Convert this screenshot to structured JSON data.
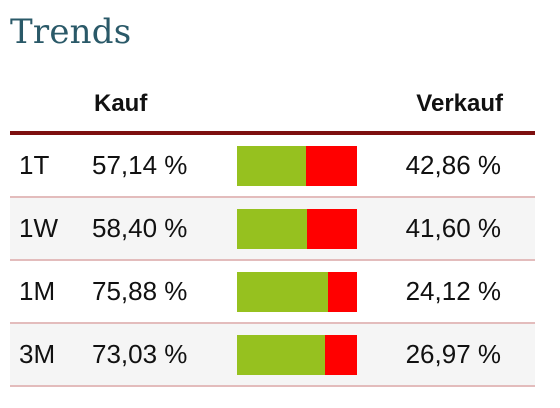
{
  "title": "Trends",
  "columns": {
    "buy": "Kauf",
    "sell": "Verkauf"
  },
  "colors": {
    "title": "#2a5968",
    "buy_bar": "#96c11f",
    "sell_bar": "#ff0000",
    "header_rule": "#7d0f0f",
    "row_divider": "#e3bcbc"
  },
  "rows": [
    {
      "period": "1T",
      "buy": "57,14 %",
      "sell": "42,86 %",
      "buy_fraction": 0.5714
    },
    {
      "period": "1W",
      "buy": "58,40 %",
      "sell": "41,60 %",
      "buy_fraction": 0.584
    },
    {
      "period": "1M",
      "buy": "75,88 %",
      "sell": "24,12 %",
      "buy_fraction": 0.7588
    },
    {
      "period": "3M",
      "buy": "73,03 %",
      "sell": "26,97 %",
      "buy_fraction": 0.7303
    }
  ]
}
